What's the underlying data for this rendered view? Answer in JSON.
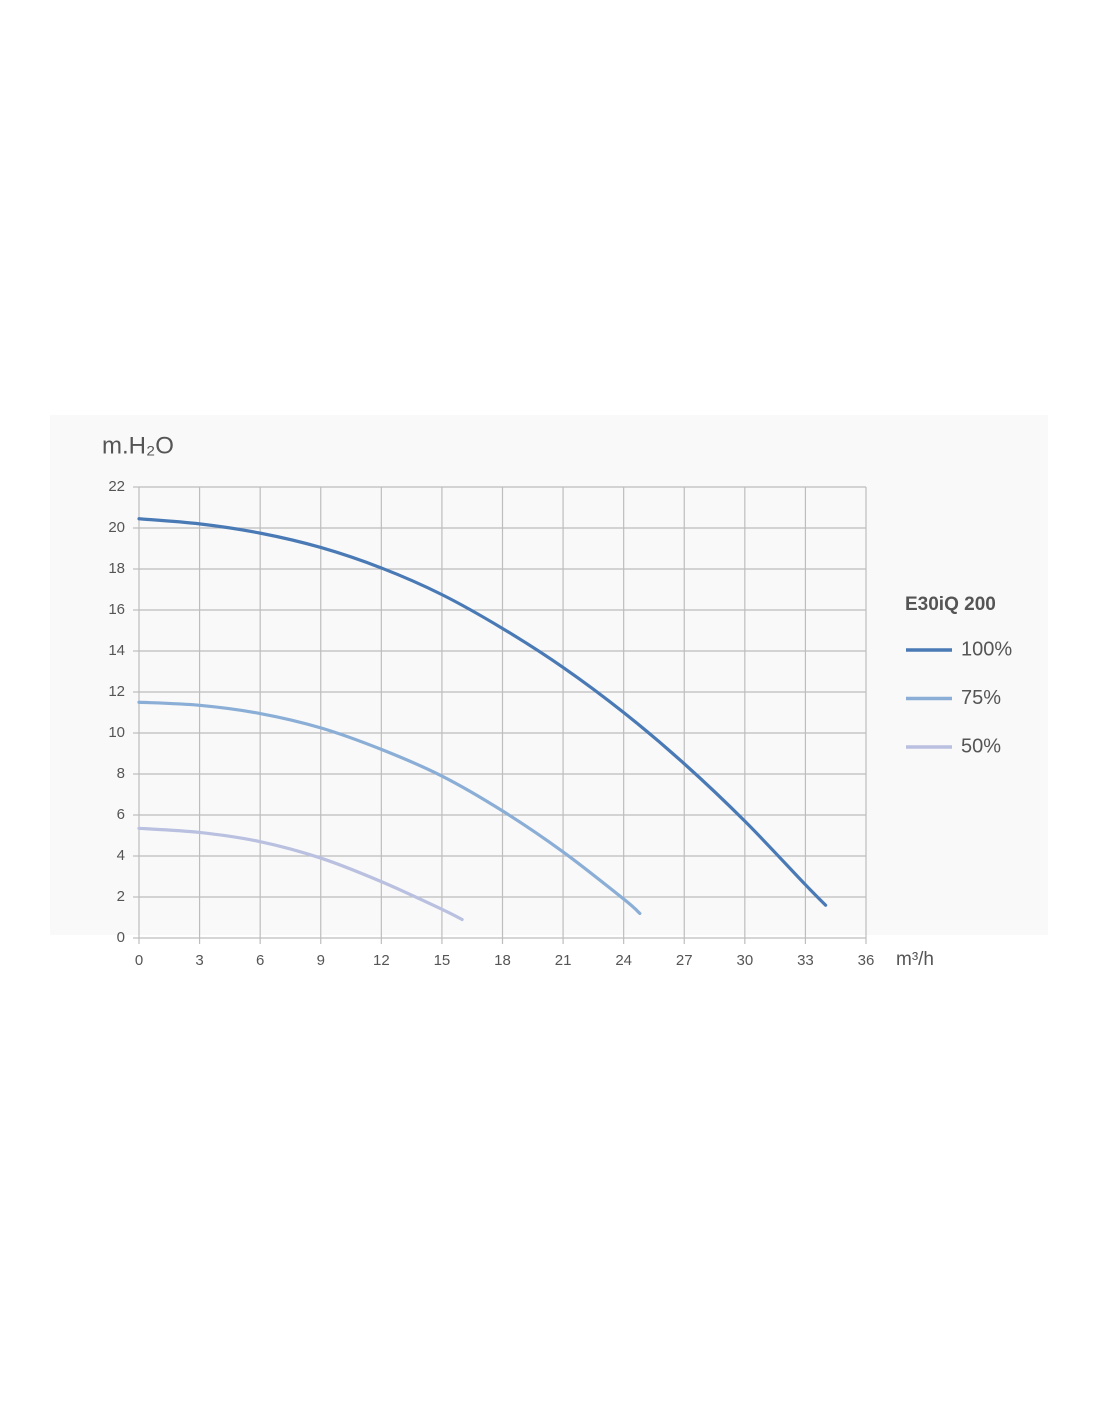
{
  "chart_data": {
    "type": "line",
    "x_label": "m³/h",
    "y_label": "m.H₂O",
    "legend_title": "E30iQ 200",
    "legend": "right",
    "grid": true,
    "xlim": [
      0,
      36
    ],
    "ylim": [
      0,
      22
    ],
    "xticks": [
      0,
      3,
      6,
      9,
      12,
      15,
      18,
      21,
      24,
      27,
      30,
      33,
      36
    ],
    "yticks": [
      0,
      2,
      4,
      6,
      8,
      10,
      12,
      14,
      16,
      18,
      20,
      22
    ],
    "series": [
      {
        "name": "100%",
        "color": "#4a7ab5",
        "x": [
          0,
          3,
          6,
          9,
          12,
          15,
          18,
          21,
          24,
          27,
          30,
          33,
          34
        ],
        "values": [
          20.45,
          20.2,
          19.75,
          19.05,
          18.05,
          16.75,
          15.1,
          13.2,
          11.0,
          8.5,
          5.7,
          2.6,
          1.6
        ]
      },
      {
        "name": "75%",
        "color": "#8aaed6",
        "x": [
          0,
          3,
          6,
          9,
          12,
          15,
          18,
          21,
          24,
          24.8
        ],
        "values": [
          11.5,
          11.35,
          10.95,
          10.25,
          9.2,
          7.9,
          6.2,
          4.2,
          1.9,
          1.2
        ]
      },
      {
        "name": "50%",
        "color": "#b9c0e0",
        "x": [
          0,
          3,
          6,
          9,
          12,
          15,
          16
        ],
        "values": [
          5.35,
          5.15,
          4.7,
          3.9,
          2.75,
          1.4,
          0.9
        ]
      }
    ]
  }
}
